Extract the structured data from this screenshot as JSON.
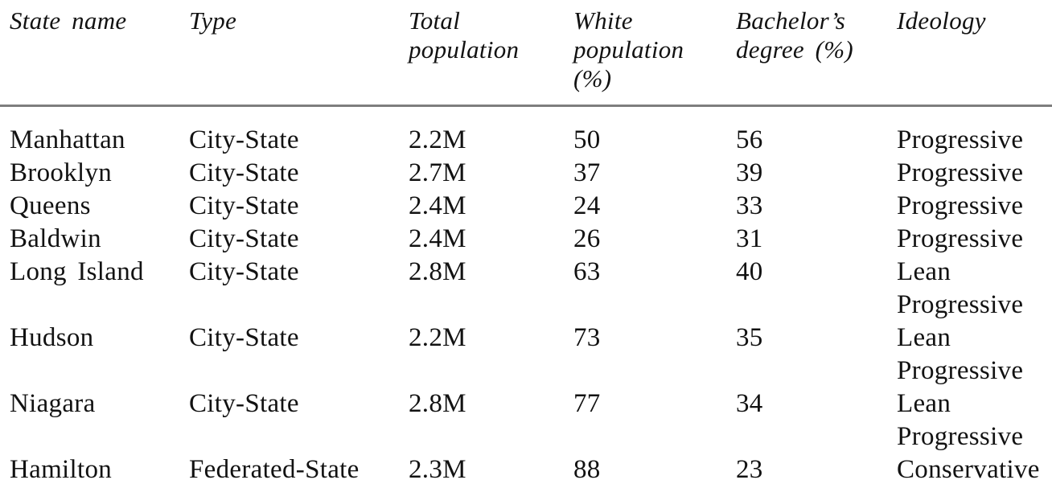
{
  "table": {
    "columns": [
      {
        "label": "State name"
      },
      {
        "label": "Type"
      },
      {
        "label": "Total\npopulation"
      },
      {
        "label": "White\npopulation\n(%)"
      },
      {
        "label": "Bachelor’s\ndegree (%)"
      },
      {
        "label": "Ideology"
      }
    ],
    "rows": [
      [
        "Manhattan",
        "City-State",
        "2.2M",
        "50",
        "56",
        "Progressive"
      ],
      [
        "Brooklyn",
        "City-State",
        "2.7M",
        "37",
        "39",
        "Progressive"
      ],
      [
        "Queens",
        "City-State",
        "2.4M",
        "24",
        "33",
        "Progressive"
      ],
      [
        "Baldwin",
        "City-State",
        "2.4M",
        "26",
        "31",
        "Progressive"
      ],
      [
        "Long Island",
        "City-State",
        "2.8M",
        "63",
        "40",
        "Lean\nProgressive"
      ],
      [
        "Hudson",
        "City-State",
        "2.2M",
        "73",
        "35",
        "Lean\nProgressive"
      ],
      [
        "Niagara",
        "City-State",
        "2.8M",
        "77",
        "34",
        "Lean\nProgressive"
      ],
      [
        "Hamilton",
        "Federated-State",
        "2.3M",
        "88",
        "23",
        "Conservative"
      ]
    ]
  },
  "chart_data": {
    "type": "table",
    "title": "",
    "columns": [
      "State name",
      "Type",
      "Total population",
      "White population (%)",
      "Bachelor's degree (%)",
      "Ideology"
    ],
    "rows": [
      {
        "state": "Manhattan",
        "type": "City-State",
        "total_population": "2.2M",
        "white_population_pct": 50,
        "bachelors_degree_pct": 56,
        "ideology": "Progressive"
      },
      {
        "state": "Brooklyn",
        "type": "City-State",
        "total_population": "2.7M",
        "white_population_pct": 37,
        "bachelors_degree_pct": 39,
        "ideology": "Progressive"
      },
      {
        "state": "Queens",
        "type": "City-State",
        "total_population": "2.4M",
        "white_population_pct": 24,
        "bachelors_degree_pct": 33,
        "ideology": "Progressive"
      },
      {
        "state": "Baldwin",
        "type": "City-State",
        "total_population": "2.4M",
        "white_population_pct": 26,
        "bachelors_degree_pct": 31,
        "ideology": "Progressive"
      },
      {
        "state": "Long Island",
        "type": "City-State",
        "total_population": "2.8M",
        "white_population_pct": 63,
        "bachelors_degree_pct": 40,
        "ideology": "Lean Progressive"
      },
      {
        "state": "Hudson",
        "type": "City-State",
        "total_population": "2.2M",
        "white_population_pct": 73,
        "bachelors_degree_pct": 35,
        "ideology": "Lean Progressive"
      },
      {
        "state": "Niagara",
        "type": "City-State",
        "total_population": "2.8M",
        "white_population_pct": 77,
        "bachelors_degree_pct": 34,
        "ideology": "Lean Progressive"
      },
      {
        "state": "Hamilton",
        "type": "Federated-State",
        "total_population": "2.3M",
        "white_population_pct": 88,
        "bachelors_degree_pct": 23,
        "ideology": "Conservative"
      }
    ]
  },
  "colors": {
    "background": "#ffffff",
    "text": "#121212",
    "header_rule": "#7e7e7e"
  }
}
